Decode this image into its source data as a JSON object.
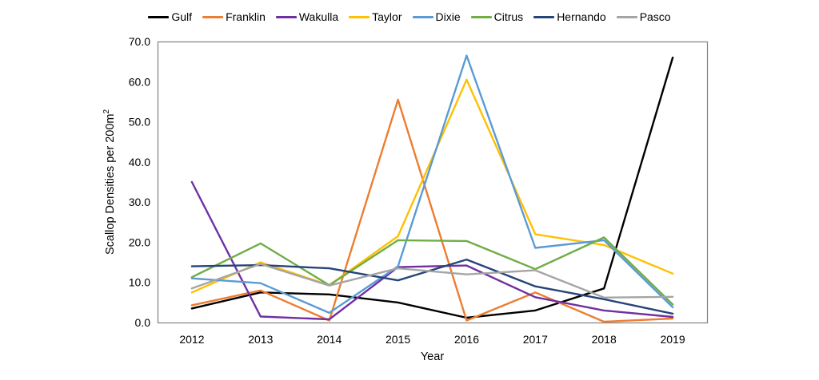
{
  "chart_data": {
    "type": "line",
    "title": "",
    "xlabel": "Year",
    "ylabel": "Scallop Densities per 200m",
    "ylabel_superscript": "2",
    "categories": [
      "2012",
      "2013",
      "2014",
      "2015",
      "2016",
      "2017",
      "2018",
      "2019"
    ],
    "series": [
      {
        "name": "Gulf",
        "color": "#000000",
        "values": [
          3.5,
          7.5,
          7.0,
          5.0,
          1.2,
          3.0,
          8.5,
          66.0
        ]
      },
      {
        "name": "Franklin",
        "color": "#ED7D31",
        "values": [
          4.3,
          8.0,
          0.5,
          55.5,
          0.5,
          7.5,
          0.2,
          1.0
        ]
      },
      {
        "name": "Wakulla",
        "color": "#7030A0",
        "values": [
          35.0,
          1.5,
          0.8,
          13.8,
          14.2,
          6.3,
          3.0,
          1.4
        ]
      },
      {
        "name": "Taylor",
        "color": "#FFC000",
        "values": [
          7.5,
          15.0,
          9.3,
          21.5,
          60.5,
          22.0,
          19.3,
          12.2
        ]
      },
      {
        "name": "Dixie",
        "color": "#5B9BD5",
        "values": [
          11.0,
          9.8,
          2.4,
          14.0,
          66.5,
          18.6,
          20.5,
          3.8
        ]
      },
      {
        "name": "Citrus",
        "color": "#70AD47",
        "values": [
          11.3,
          19.7,
          9.3,
          20.5,
          20.3,
          13.3,
          21.2,
          4.5
        ]
      },
      {
        "name": "Hernando",
        "color": "#264478",
        "values": [
          14.0,
          14.3,
          13.5,
          10.5,
          15.7,
          9.0,
          5.8,
          2.2
        ]
      },
      {
        "name": "Pasco",
        "color": "#A5A5A5",
        "values": [
          8.5,
          14.6,
          9.2,
          13.5,
          12.0,
          13.0,
          6.2,
          6.4
        ]
      }
    ],
    "ylim": [
      0,
      70
    ],
    "ytick_step": 10,
    "ytick_labels": [
      "0.0",
      "10.0",
      "20.0",
      "30.0",
      "40.0",
      "50.0",
      "60.0",
      "70.0"
    ],
    "legend_position": "top",
    "grid": false,
    "frame_color": "#808080"
  }
}
